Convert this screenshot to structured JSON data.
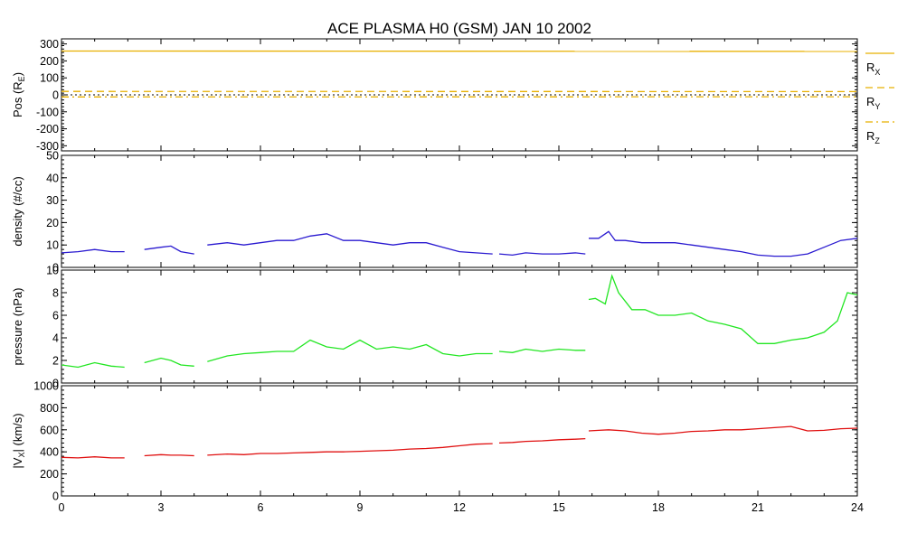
{
  "chart_data": [
    {
      "type": "line",
      "title": "ACE PLASMA H0 (GSM)   JAN 10 2002",
      "panel": "position",
      "ylabel": "Pos (R",
      "ylabel_sub": "E",
      "ylabel_end": ")",
      "xlim": [
        0,
        24
      ],
      "ylim": [
        -330,
        330
      ],
      "yticks": [
        "300",
        "200",
        "100",
        "0",
        "-100",
        "-200",
        "-300"
      ],
      "ytick_values": [
        300,
        200,
        100,
        0,
        -100,
        -200,
        -300
      ],
      "series": [
        {
          "name": "R",
          "sub": "X",
          "color": "#e8b000",
          "dash": "solid",
          "x": [
            0,
            24
          ],
          "y": [
            258,
            256
          ]
        },
        {
          "name": "R",
          "sub": "Y",
          "color": "#e8b000",
          "dash": "dashed",
          "x": [
            0,
            24
          ],
          "y": [
            20,
            19
          ]
        },
        {
          "name": "R",
          "sub": "Z",
          "color": "#e8b000",
          "dash": "dashdot",
          "x": [
            0,
            24
          ],
          "y": [
            -12,
            -11
          ]
        }
      ],
      "zero_line": true,
      "legend_position": "right"
    },
    {
      "type": "line",
      "panel": "density",
      "ylabel": "density (#/cc)",
      "xlim": [
        0,
        24
      ],
      "ylim": [
        0,
        50
      ],
      "yticks": [
        "50",
        "40",
        "30",
        "20",
        "10",
        "0"
      ],
      "ytick_values": [
        50,
        40,
        30,
        20,
        10,
        0
      ],
      "color": "#2a1ad0",
      "series": [
        {
          "x": [
            0,
            0.5,
            1.0,
            1.5,
            1.9
          ],
          "y": [
            6.5,
            7,
            8,
            7,
            7
          ]
        },
        {
          "x": [
            2.5,
            3,
            3.3,
            3.6,
            4.0
          ],
          "y": [
            8,
            9,
            9.5,
            7,
            6
          ]
        },
        {
          "x": [
            4.4,
            5,
            5.5,
            6,
            6.5,
            7,
            7.5,
            8,
            8.5,
            9,
            9.5,
            10,
            10.5,
            11,
            11.5,
            12,
            12.5,
            13
          ],
          "y": [
            10,
            11,
            10,
            11,
            12,
            12,
            14,
            15,
            12,
            12,
            11,
            10,
            11,
            11,
            9,
            7,
            6.5,
            6
          ]
        },
        {
          "x": [
            13.2,
            13.6,
            14,
            14.5,
            15,
            15.5,
            15.8
          ],
          "y": [
            6,
            5.5,
            6.5,
            6,
            6,
            6.5,
            6
          ]
        },
        {
          "x": [
            15.9,
            16.2,
            16.5,
            16.7,
            17,
            17.5,
            18,
            18.5,
            19,
            19.5,
            20,
            20.5,
            21,
            21.5,
            22,
            22.5,
            23,
            23.5,
            24
          ],
          "y": [
            13,
            13,
            16,
            12,
            12,
            11,
            11,
            11,
            10,
            9,
            8,
            7,
            5.5,
            5,
            5,
            6,
            9,
            12,
            13
          ]
        }
      ]
    },
    {
      "type": "line",
      "panel": "pressure",
      "ylabel": "pressure (nPa)",
      "xlim": [
        0,
        24
      ],
      "ylim": [
        0,
        10
      ],
      "yticks": [
        "10",
        "8",
        "6",
        "4",
        "2",
        "0"
      ],
      "ytick_values": [
        10,
        8,
        6,
        4,
        2,
        0
      ],
      "color": "#22e622",
      "series": [
        {
          "x": [
            0,
            0.5,
            1.0,
            1.5,
            1.9
          ],
          "y": [
            1.6,
            1.4,
            1.8,
            1.5,
            1.4
          ]
        },
        {
          "x": [
            2.5,
            3,
            3.3,
            3.6,
            4.0
          ],
          "y": [
            1.8,
            2.2,
            2.0,
            1.6,
            1.5
          ]
        },
        {
          "x": [
            4.4,
            5,
            5.5,
            6,
            6.5,
            7,
            7.5,
            8,
            8.5,
            9,
            9.5,
            10,
            10.5,
            11,
            11.5,
            12,
            12.5,
            13
          ],
          "y": [
            1.9,
            2.4,
            2.6,
            2.7,
            2.8,
            2.8,
            3.8,
            3.2,
            3.0,
            3.8,
            3.0,
            3.2,
            3.0,
            3.4,
            2.6,
            2.4,
            2.6,
            2.6
          ]
        },
        {
          "x": [
            13.2,
            13.6,
            14,
            14.5,
            15,
            15.5,
            15.8
          ],
          "y": [
            2.8,
            2.7,
            3.0,
            2.8,
            3.0,
            2.9,
            2.9
          ]
        },
        {
          "x": [
            15.9,
            16.1,
            16.4,
            16.6,
            16.8,
            17.2,
            17.6,
            18,
            18.5,
            19,
            19.5,
            20,
            20.5,
            21,
            21.5,
            22,
            22.5,
            23,
            23.4,
            23.7,
            24
          ],
          "y": [
            7.4,
            7.5,
            7.0,
            9.5,
            8.0,
            6.5,
            6.5,
            6.0,
            6.0,
            6.2,
            5.5,
            5.2,
            4.8,
            3.5,
            3.5,
            3.8,
            4.0,
            4.5,
            5.5,
            8.0,
            7.8
          ]
        }
      ]
    },
    {
      "type": "line",
      "panel": "velocity",
      "ylabel": "|V",
      "ylabel_sub": "X",
      "ylabel_end": "| (km/s)",
      "xlim": [
        0,
        24
      ],
      "ylim": [
        0,
        1000
      ],
      "yticks": [
        "1000",
        "800",
        "600",
        "400",
        "200",
        "0"
      ],
      "ytick_values": [
        1000,
        800,
        600,
        400,
        200,
        0
      ],
      "xticks": [
        "0",
        "3",
        "6",
        "9",
        "12",
        "15",
        "18",
        "21",
        "24"
      ],
      "xtick_values": [
        0,
        3,
        6,
        9,
        12,
        15,
        18,
        21,
        24
      ],
      "color": "#e01010",
      "series": [
        {
          "x": [
            0,
            0.5,
            1.0,
            1.5,
            1.9
          ],
          "y": [
            350,
            345,
            355,
            345,
            345
          ]
        },
        {
          "x": [
            2.5,
            3,
            3.3,
            3.6,
            4.0
          ],
          "y": [
            365,
            375,
            370,
            370,
            365
          ]
        },
        {
          "x": [
            4.4,
            5,
            5.5,
            6,
            6.5,
            7,
            7.5,
            8,
            8.5,
            9,
            9.5,
            10,
            10.5,
            11,
            11.5,
            12,
            12.5,
            13
          ],
          "y": [
            370,
            380,
            375,
            385,
            385,
            390,
            395,
            400,
            400,
            405,
            410,
            415,
            425,
            430,
            440,
            455,
            470,
            475
          ]
        },
        {
          "x": [
            13.2,
            13.6,
            14,
            14.5,
            15,
            15.5,
            15.8
          ],
          "y": [
            480,
            485,
            495,
            500,
            510,
            515,
            520
          ]
        },
        {
          "x": [
            15.9,
            16.2,
            16.5,
            17,
            17.5,
            18,
            18.5,
            19,
            19.5,
            20,
            20.5,
            21,
            21.5,
            22,
            22.5,
            23,
            23.5,
            24
          ],
          "y": [
            590,
            595,
            600,
            590,
            570,
            560,
            570,
            585,
            590,
            600,
            600,
            610,
            620,
            630,
            590,
            595,
            610,
            615
          ]
        }
      ]
    }
  ]
}
